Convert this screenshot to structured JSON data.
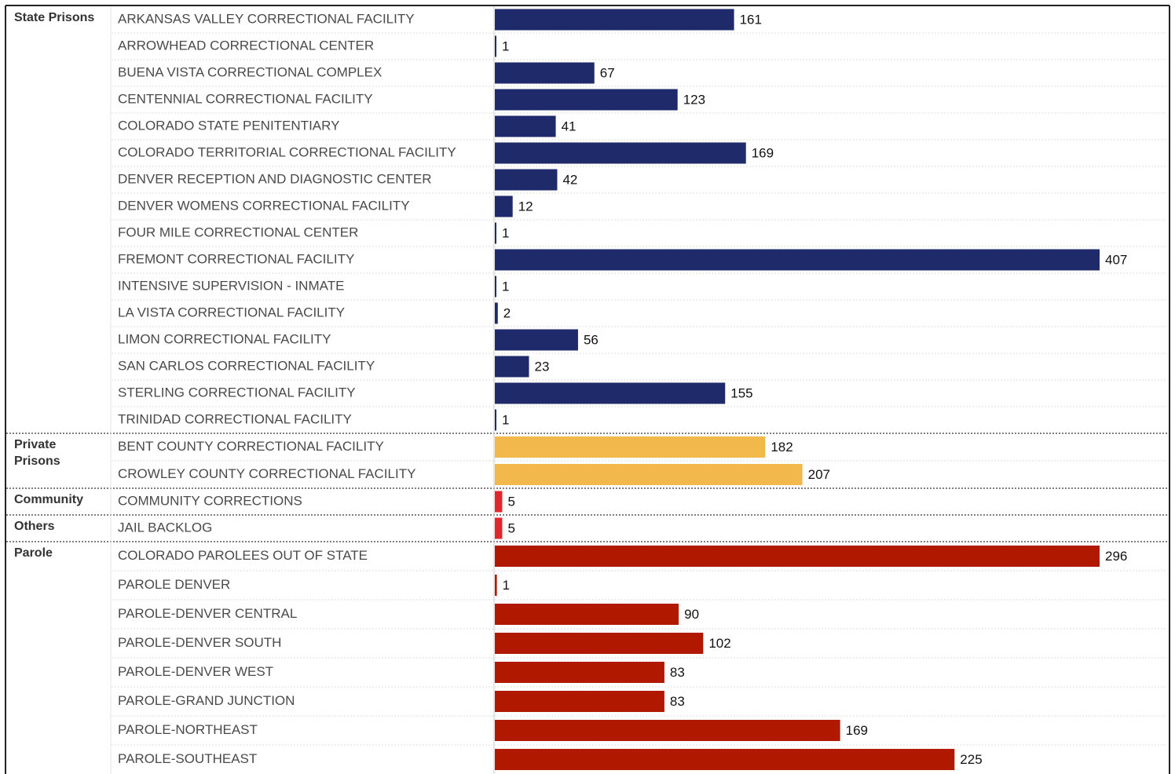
{
  "chart_data": {
    "type": "bar",
    "groups": [
      {
        "name": "State Prisons",
        "color": "#1f2a6b",
        "xlim": [
          0,
          407
        ],
        "categories": [
          "ARKANSAS VALLEY CORRECTIONAL FACILITY",
          "ARROWHEAD CORRECTIONAL CENTER",
          "BUENA VISTA CORRECTIONAL COMPLEX",
          "CENTENNIAL CORRECTIONAL FACILITY",
          "COLORADO STATE PENITENTIARY",
          "COLORADO TERRITORIAL CORRECTIONAL FACILITY",
          "DENVER RECEPTION AND DIAGNOSTIC CENTER",
          "DENVER WOMENS CORRECTIONAL FACILITY",
          "FOUR MILE CORRECTIONAL CENTER",
          "FREMONT CORRECTIONAL FACILITY",
          "INTENSIVE SUPERVISION - INMATE",
          "LA VISTA CORRECTIONAL FACILITY",
          "LIMON CORRECTIONAL FACILITY",
          "SAN CARLOS CORRECTIONAL FACILITY",
          "STERLING CORRECTIONAL FACILITY",
          "TRINIDAD CORRECTIONAL FACILITY"
        ],
        "values": [
          161,
          1,
          67,
          123,
          41,
          169,
          42,
          12,
          1,
          407,
          1,
          2,
          56,
          23,
          155,
          1
        ]
      },
      {
        "name": "Private Prisons",
        "color": "#f2b84b",
        "xlim": [
          0,
          407
        ],
        "categories": [
          "BENT COUNTY CORRECTIONAL FACILITY",
          "CROWLEY COUNTY CORRECTIONAL FACILITY"
        ],
        "values": [
          182,
          207
        ]
      },
      {
        "name": "Community",
        "color": "#e3262b",
        "xlim": [
          0,
          407
        ],
        "categories": [
          "COMMUNITY CORRECTIONS"
        ],
        "values": [
          5
        ]
      },
      {
        "name": "Others",
        "color": "#e3262b",
        "xlim": [
          0,
          407
        ],
        "categories": [
          "JAIL BACKLOG"
        ],
        "values": [
          5
        ]
      },
      {
        "name": "Parole",
        "color": "#b01800",
        "xlim": [
          0,
          296
        ],
        "categories": [
          "COLORADO PAROLEES OUT OF STATE",
          "PAROLE DENVER",
          "PAROLE-DENVER CENTRAL",
          "PAROLE-DENVER SOUTH",
          "PAROLE-DENVER WEST",
          "PAROLE-GRAND JUNCTION",
          "PAROLE-NORTHEAST",
          "PAROLE-SOUTHEAST"
        ],
        "values": [
          296,
          1,
          90,
          102,
          83,
          83,
          169,
          225
        ]
      }
    ]
  }
}
